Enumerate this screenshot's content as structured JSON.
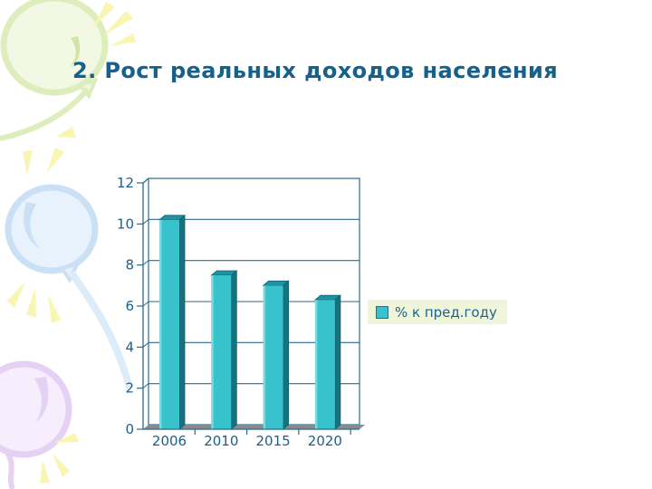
{
  "slide": {
    "title": "2. Рост реальных доходов населения",
    "title_color": "#15618C",
    "background": "#FFFFFF"
  },
  "chart_data": {
    "type": "bar",
    "style": "3d-column",
    "title": "",
    "xlabel": "",
    "ylabel": "",
    "categories": [
      "2006",
      "2010",
      "2015",
      "2020"
    ],
    "values": [
      10.2,
      7.5,
      7,
      6.3
    ],
    "series_label": "% к пред.году",
    "ylim": [
      0,
      12
    ],
    "yticks": [
      0,
      2,
      4,
      6,
      8,
      10,
      12
    ],
    "grid": true,
    "legend_position": "right",
    "colors": {
      "bar_front": "#38C2CC",
      "bar_top": "#1E93A4",
      "bar_side": "#15727F",
      "bar_edge": "#0F5F6E",
      "axis": "#2F6A8C",
      "floor": "#8A8A8A",
      "tick_label": "#1E5F88",
      "legend_bg": "#EEF5D8",
      "legend_text": "#1E6390"
    }
  }
}
